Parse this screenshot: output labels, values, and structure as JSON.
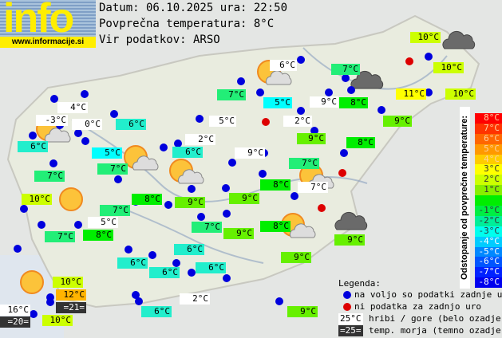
{
  "logo": {
    "word": "info",
    "url": "www.informacije.si"
  },
  "header": {
    "date_line": "Datum: 06.10.2025 ura: 22:50",
    "avg_line": "Povprečna temperatura: 8°C",
    "source_line": "Vir podatkov: ARSO"
  },
  "colors": {
    "station_ok": "#0000dd",
    "station_missing": "#dd0000",
    "hill_bg": "#ffffff",
    "sea_bg": "#333333",
    "t12": "#ffb400",
    "t11": "#ffff00",
    "t10": "#ccff00",
    "t9": "#66f000",
    "t8": "#00ee00",
    "t7": "#22ee77",
    "t6": "#22eecc",
    "t5": "#00ffff"
  },
  "stations": [
    {
      "text": "10°C",
      "kind": "t10"
    },
    {
      "text": "10°C",
      "kind": "t10"
    },
    {
      "text": "10°C",
      "kind": "t10"
    },
    {
      "text": "11°C",
      "kind": "t11"
    },
    {
      "text": "6°C",
      "kind": "hill"
    },
    {
      "text": "7°C",
      "kind": "t7"
    },
    {
      "text": "7°C",
      "kind": "t7"
    },
    {
      "text": "5°C",
      "kind": "t5"
    },
    {
      "text": "9°C",
      "kind": "hill"
    },
    {
      "text": "8°C",
      "kind": "t8"
    },
    {
      "text": "2°C",
      "kind": "hill"
    },
    {
      "text": "9°C",
      "kind": "t9"
    },
    {
      "text": "9°C",
      "kind": "t9"
    },
    {
      "text": "8°C",
      "kind": "t8"
    },
    {
      "text": "4°C",
      "kind": "hill"
    },
    {
      "text": "-3°C",
      "kind": "hill"
    },
    {
      "text": "0°C",
      "kind": "hill"
    },
    {
      "text": "6°C",
      "kind": "t6"
    },
    {
      "text": "5°C",
      "kind": "hill"
    },
    {
      "text": "6°C",
      "kind": "t6"
    },
    {
      "text": "5°C",
      "kind": "t5"
    },
    {
      "text": "2°C",
      "kind": "hill"
    },
    {
      "text": "6°C",
      "kind": "t6"
    },
    {
      "text": "9°C",
      "kind": "hill"
    },
    {
      "text": "7°C",
      "kind": "t7"
    },
    {
      "text": "7°C",
      "kind": "t7"
    },
    {
      "text": "7°C",
      "kind": "t7"
    },
    {
      "text": "8°C",
      "kind": "t8"
    },
    {
      "text": "7°C",
      "kind": "hill"
    },
    {
      "text": "10°C",
      "kind": "t10"
    },
    {
      "text": "8°C",
      "kind": "t8"
    },
    {
      "text": "9°C",
      "kind": "t9"
    },
    {
      "text": "9°C",
      "kind": "t9"
    },
    {
      "text": "7°C",
      "kind": "t7"
    },
    {
      "text": "5°C",
      "kind": "hill"
    },
    {
      "text": "7°C",
      "kind": "t7"
    },
    {
      "text": "8°C",
      "kind": "t8"
    },
    {
      "text": "9°C",
      "kind": "t9"
    },
    {
      "text": "7°C",
      "kind": "t7"
    },
    {
      "text": "8°C",
      "kind": "t8"
    },
    {
      "text": "9°C",
      "kind": "t9"
    },
    {
      "text": "9°C",
      "kind": "t9"
    },
    {
      "text": "6°C",
      "kind": "t6"
    },
    {
      "text": "6°C",
      "kind": "t6"
    },
    {
      "text": "6°C",
      "kind": "t6"
    },
    {
      "text": "6°C",
      "kind": "t6"
    },
    {
      "text": "10°C",
      "kind": "t10"
    },
    {
      "text": "12°C",
      "kind": "t12"
    },
    {
      "text": "=21=",
      "kind": "sea"
    },
    {
      "text": "16°C",
      "kind": "hill"
    },
    {
      "text": "=20=",
      "kind": "sea"
    },
    {
      "text": "10°C",
      "kind": "t10"
    },
    {
      "text": "2°C",
      "kind": "hill"
    },
    {
      "text": "6°C",
      "kind": "t6"
    },
    {
      "text": "9°C",
      "kind": "t9"
    }
  ],
  "weather_icons": [
    "sun-cloud",
    "sun-cloud",
    "sun-cloud",
    "sun-cloud",
    "sun-cloud",
    "sun-cloud",
    "sun",
    "sun",
    "dark-cloud",
    "dark-cloud",
    "dark-cloud"
  ],
  "scale": {
    "title": "Odstopanje od povprečne temperature:",
    "rows": [
      {
        "label": "8°C",
        "color": "#ff0000"
      },
      {
        "label": "7°C",
        "color": "#ff3300"
      },
      {
        "label": "6°C",
        "color": "#ff6600"
      },
      {
        "label": "5°C",
        "color": "#ff9900"
      },
      {
        "label": "4°C",
        "color": "#ffcc00"
      },
      {
        "label": "3°C",
        "color": "#ffff00"
      },
      {
        "label": "2°C",
        "color": "#ccff00"
      },
      {
        "label": "1°C",
        "color": "#88ee00"
      },
      {
        "label": "",
        "color": "#00ee00"
      },
      {
        "label": "-1°C",
        "color": "#00ee44"
      },
      {
        "label": "-2°C",
        "color": "#00ee99"
      },
      {
        "label": "-3°C",
        "color": "#00ffee"
      },
      {
        "label": "-4°C",
        "color": "#00ccff"
      },
      {
        "label": "-5°C",
        "color": "#0088ff"
      },
      {
        "label": "-6°C",
        "color": "#0055ff"
      },
      {
        "label": "-7°C",
        "color": "#0022ff"
      },
      {
        "label": "-8°C",
        "color": "#0000ee"
      }
    ]
  },
  "legend": {
    "title": "Legenda:",
    "ok": "na voljo so podatki zadnje ure",
    "missing": "ni podatka za zadnjo uro",
    "hill_sample": "25°C",
    "hill": "hribi / gore (belo ozadje)",
    "sea_sample": "=25=",
    "sea": "temp. morja (temno ozadje)"
  }
}
